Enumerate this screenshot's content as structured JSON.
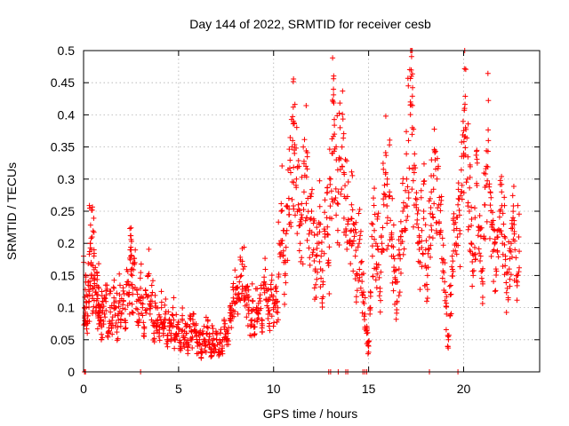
{
  "chart_data": {
    "type": "scatter",
    "title": "Day 144 of 2022, SRMTID for receiver cesb",
    "xlabel": "GPS time / hours",
    "ylabel": "SRMTID / TECUs",
    "xlim": [
      0,
      24
    ],
    "ylim": [
      0,
      0.5
    ],
    "x_ticks": [
      0,
      5,
      10,
      15,
      20
    ],
    "x_tick_labels": [
      "0",
      "5",
      "10",
      "15",
      "20"
    ],
    "y_ticks": [
      0,
      0.05,
      0.1,
      0.15,
      0.2,
      0.25,
      0.3,
      0.35,
      0.4,
      0.45,
      0.5
    ],
    "y_tick_labels": [
      "0",
      "0.05",
      "0.1",
      "0.15",
      "0.2",
      "0.25",
      "0.3",
      "0.35",
      "0.4",
      "0.45",
      "0.5"
    ],
    "grid": true,
    "marker": "+",
    "marker_color": "#ff0000",
    "series": [
      {
        "name": "SRMTID",
        "points": [
          [
            0.0,
            0.18
          ],
          [
            0.05,
            0.1
          ],
          [
            0.1,
            0.09
          ],
          [
            0.15,
            0.12
          ],
          [
            0.2,
            0.08
          ],
          [
            0.25,
            0.14
          ],
          [
            0.3,
            0.11
          ],
          [
            0.35,
            0.2
          ],
          [
            0.4,
            0.17
          ],
          [
            0.45,
            0.21
          ],
          [
            0.5,
            0.13
          ],
          [
            0.55,
            0.19
          ],
          [
            0.6,
            0.15
          ],
          [
            0.65,
            0.1
          ],
          [
            0.7,
            0.12
          ],
          [
            0.75,
            0.09
          ],
          [
            0.8,
            0.13
          ],
          [
            0.85,
            0.08
          ],
          [
            0.9,
            0.1
          ],
          [
            0.95,
            0.07
          ],
          [
            1.0,
            0.11
          ],
          [
            1.1,
            0.09
          ],
          [
            1.2,
            0.12
          ],
          [
            1.3,
            0.06
          ],
          [
            1.4,
            0.1
          ],
          [
            1.5,
            0.08
          ],
          [
            1.6,
            0.13
          ],
          [
            1.7,
            0.1
          ],
          [
            1.8,
            0.07
          ],
          [
            1.9,
            0.12
          ],
          [
            2.0,
            0.09
          ],
          [
            2.1,
            0.11
          ],
          [
            2.2,
            0.08
          ],
          [
            2.3,
            0.14
          ],
          [
            2.4,
            0.12
          ],
          [
            2.45,
            0.19
          ],
          [
            2.5,
            0.18
          ],
          [
            2.55,
            0.16
          ],
          [
            2.6,
            0.13
          ],
          [
            2.7,
            0.17
          ],
          [
            2.8,
            0.11
          ],
          [
            2.9,
            0.09
          ],
          [
            3.0,
            0.13
          ],
          [
            3.1,
            0.1
          ],
          [
            3.2,
            0.07
          ],
          [
            3.3,
            0.12
          ],
          [
            3.4,
            0.15
          ],
          [
            3.5,
            0.09
          ],
          [
            3.6,
            0.11
          ],
          [
            3.7,
            0.06
          ],
          [
            3.8,
            0.1
          ],
          [
            3.9,
            0.08
          ],
          [
            4.0,
            0.07
          ],
          [
            4.1,
            0.1
          ],
          [
            4.2,
            0.06
          ],
          [
            4.3,
            0.09
          ],
          [
            4.4,
            0.05
          ],
          [
            4.5,
            0.08
          ],
          [
            4.6,
            0.06
          ],
          [
            4.7,
            0.1
          ],
          [
            4.8,
            0.05
          ],
          [
            4.9,
            0.07
          ],
          [
            5.0,
            0.06
          ],
          [
            5.1,
            0.04
          ],
          [
            5.2,
            0.08
          ],
          [
            5.3,
            0.05
          ],
          [
            5.4,
            0.06
          ],
          [
            5.5,
            0.04
          ],
          [
            5.6,
            0.07
          ],
          [
            5.7,
            0.05
          ],
          [
            5.8,
            0.09
          ],
          [
            5.9,
            0.06
          ],
          [
            6.0,
            0.04
          ],
          [
            6.1,
            0.05
          ],
          [
            6.2,
            0.03
          ],
          [
            6.3,
            0.06
          ],
          [
            6.4,
            0.04
          ],
          [
            6.5,
            0.07
          ],
          [
            6.6,
            0.05
          ],
          [
            6.7,
            0.03
          ],
          [
            6.8,
            0.06
          ],
          [
            6.9,
            0.04
          ],
          [
            7.0,
            0.05
          ],
          [
            7.1,
            0.03
          ],
          [
            7.2,
            0.06
          ],
          [
            7.3,
            0.04
          ],
          [
            7.4,
            0.07
          ],
          [
            7.5,
            0.05
          ],
          [
            7.6,
            0.06
          ],
          [
            7.7,
            0.08
          ],
          [
            7.8,
            0.09
          ],
          [
            7.9,
            0.11
          ],
          [
            8.0,
            0.13
          ],
          [
            8.1,
            0.12
          ],
          [
            8.2,
            0.14
          ],
          [
            8.3,
            0.15
          ],
          [
            8.4,
            0.16
          ],
          [
            8.5,
            0.13
          ],
          [
            8.6,
            0.12
          ],
          [
            8.7,
            0.1
          ],
          [
            8.8,
            0.08
          ],
          [
            8.9,
            0.11
          ],
          [
            9.0,
            0.07
          ],
          [
            9.1,
            0.1
          ],
          [
            9.2,
            0.09
          ],
          [
            9.3,
            0.12
          ],
          [
            9.4,
            0.08
          ],
          [
            9.5,
            0.14
          ],
          [
            9.6,
            0.13
          ],
          [
            9.7,
            0.11
          ],
          [
            9.8,
            0.09
          ],
          [
            9.9,
            0.12
          ],
          [
            10.0,
            0.1
          ],
          [
            10.1,
            0.13
          ],
          [
            10.2,
            0.11
          ],
          [
            10.3,
            0.2
          ],
          [
            10.4,
            0.25
          ],
          [
            10.5,
            0.18
          ],
          [
            10.6,
            0.15
          ],
          [
            10.7,
            0.22
          ],
          [
            10.8,
            0.27
          ],
          [
            10.9,
            0.31
          ],
          [
            11.0,
            0.36
          ],
          [
            11.05,
            0.39
          ],
          [
            11.1,
            0.34
          ],
          [
            11.2,
            0.3
          ],
          [
            11.3,
            0.26
          ],
          [
            11.4,
            0.2
          ],
          [
            11.5,
            0.24
          ],
          [
            11.6,
            0.28
          ],
          [
            11.7,
            0.32
          ],
          [
            11.8,
            0.27
          ],
          [
            11.9,
            0.22
          ],
          [
            12.0,
            0.25
          ],
          [
            12.1,
            0.19
          ],
          [
            12.2,
            0.16
          ],
          [
            12.3,
            0.2
          ],
          [
            12.4,
            0.23
          ],
          [
            12.5,
            0.18
          ],
          [
            12.6,
            0.14
          ],
          [
            12.7,
            0.21
          ],
          [
            12.8,
            0.24
          ],
          [
            12.9,
            0.17
          ],
          [
            13.0,
            0.3
          ],
          [
            13.1,
            0.34
          ],
          [
            13.15,
            0.44
          ],
          [
            13.2,
            0.37
          ],
          [
            13.3,
            0.33
          ],
          [
            13.4,
            0.28
          ],
          [
            13.5,
            0.38
          ],
          [
            13.6,
            0.35
          ],
          [
            13.7,
            0.31
          ],
          [
            13.8,
            0.27
          ],
          [
            13.9,
            0.23
          ],
          [
            14.0,
            0.2
          ],
          [
            14.1,
            0.26
          ],
          [
            14.2,
            0.22
          ],
          [
            14.3,
            0.18
          ],
          [
            14.4,
            0.15
          ],
          [
            14.5,
            0.2
          ],
          [
            14.6,
            0.17
          ],
          [
            14.7,
            0.12
          ],
          [
            14.8,
            0.09
          ],
          [
            14.9,
            0.06
          ],
          [
            15.0,
            0.04
          ],
          [
            15.1,
            0.1
          ],
          [
            15.2,
            0.18
          ],
          [
            15.3,
            0.22
          ],
          [
            15.4,
            0.16
          ],
          [
            15.5,
            0.19
          ],
          [
            15.6,
            0.13
          ],
          [
            15.7,
            0.2
          ],
          [
            15.8,
            0.26
          ],
          [
            15.9,
            0.31
          ],
          [
            16.0,
            0.24
          ],
          [
            16.1,
            0.28
          ],
          [
            16.2,
            0.21
          ],
          [
            16.3,
            0.18
          ],
          [
            16.4,
            0.14
          ],
          [
            16.5,
            0.11
          ],
          [
            16.6,
            0.16
          ],
          [
            16.7,
            0.2
          ],
          [
            16.8,
            0.25
          ],
          [
            16.9,
            0.22
          ],
          [
            17.0,
            0.3
          ],
          [
            17.1,
            0.36
          ],
          [
            17.2,
            0.42
          ],
          [
            17.25,
            0.46
          ],
          [
            17.3,
            0.38
          ],
          [
            17.4,
            0.31
          ],
          [
            17.5,
            0.26
          ],
          [
            17.6,
            0.2
          ],
          [
            17.7,
            0.17
          ],
          [
            17.8,
            0.22
          ],
          [
            17.9,
            0.25
          ],
          [
            18.0,
            0.19
          ],
          [
            18.1,
            0.15
          ],
          [
            18.2,
            0.21
          ],
          [
            18.3,
            0.28
          ],
          [
            18.4,
            0.24
          ],
          [
            18.5,
            0.33
          ],
          [
            18.6,
            0.3
          ],
          [
            18.7,
            0.26
          ],
          [
            18.8,
            0.22
          ],
          [
            18.9,
            0.17
          ],
          [
            19.0,
            0.14
          ],
          [
            19.1,
            0.09
          ],
          [
            19.2,
            0.05
          ],
          [
            19.3,
            0.12
          ],
          [
            19.4,
            0.18
          ],
          [
            19.5,
            0.23
          ],
          [
            19.6,
            0.2
          ],
          [
            19.7,
            0.26
          ],
          [
            19.8,
            0.22
          ],
          [
            19.9,
            0.28
          ],
          [
            20.0,
            0.34
          ],
          [
            20.05,
            0.41
          ],
          [
            20.1,
            0.38
          ],
          [
            20.2,
            0.3
          ],
          [
            20.3,
            0.25
          ],
          [
            20.4,
            0.2
          ],
          [
            20.5,
            0.15
          ],
          [
            20.6,
            0.24
          ],
          [
            20.7,
            0.29
          ],
          [
            20.8,
            0.22
          ],
          [
            20.9,
            0.18
          ],
          [
            21.0,
            0.14
          ],
          [
            21.1,
            0.26
          ],
          [
            21.2,
            0.32
          ],
          [
            21.3,
            0.36
          ],
          [
            21.4,
            0.28
          ],
          [
            21.5,
            0.23
          ],
          [
            21.6,
            0.19
          ],
          [
            21.7,
            0.16
          ],
          [
            21.8,
            0.21
          ],
          [
            21.9,
            0.25
          ],
          [
            22.0,
            0.28
          ],
          [
            22.1,
            0.23
          ],
          [
            22.2,
            0.18
          ],
          [
            22.3,
            0.13
          ],
          [
            22.4,
            0.16
          ],
          [
            22.5,
            0.2
          ],
          [
            22.6,
            0.24
          ],
          [
            22.7,
            0.19
          ],
          [
            22.8,
            0.15
          ],
          [
            22.9,
            0.21
          ]
        ]
      }
    ],
    "zero_value_hours": [
      0.05,
      0.1,
      3.0,
      12.9,
      13.0,
      13.4,
      13.8,
      13.9,
      14.7,
      14.8,
      14.9,
      18.2,
      19.7
    ]
  }
}
